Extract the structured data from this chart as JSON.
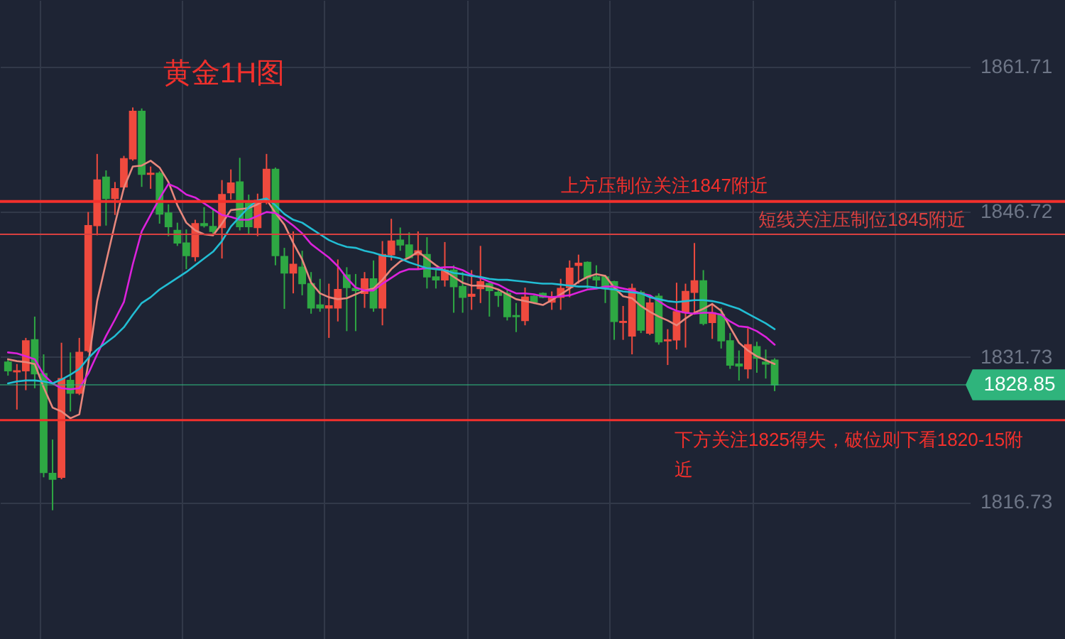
{
  "chart_data": {
    "type": "candlestick",
    "title": "黄金1H图",
    "categories": [
      null,
      null,
      null,
      null,
      null,
      null,
      null,
      null,
      null,
      null,
      null,
      null,
      null,
      null,
      null,
      null,
      null,
      null,
      null,
      null,
      null,
      null,
      null,
      null,
      null,
      null,
      null,
      null,
      null,
      null,
      null,
      null,
      null,
      null,
      null,
      null,
      null,
      null,
      null,
      null,
      null,
      null,
      null,
      null,
      null,
      null,
      null,
      null,
      null,
      null,
      null,
      null,
      null,
      null,
      null,
      null,
      null,
      null,
      null,
      null,
      null,
      null,
      null,
      null,
      null,
      null,
      null,
      null,
      null,
      null,
      null,
      null,
      null,
      null,
      null,
      null,
      null,
      null,
      null,
      null,
      null,
      null,
      null,
      null,
      null,
      null,
      null
    ],
    "ohlc": [
      [
        1831.2,
        1831.5,
        1829.8,
        1830.3
      ],
      [
        1830.2,
        1831.0,
        1826.3,
        1830.3
      ],
      [
        1830.3,
        1833.7,
        1828.3,
        1833.4
      ],
      [
        1833.5,
        1835.9,
        1828.5,
        1830.0
      ],
      [
        1830.0,
        1832.0,
        1819.3,
        1819.8
      ],
      [
        1819.7,
        1823.2,
        1815.9,
        1819.1
      ],
      [
        1819.3,
        1833.2,
        1819.1,
        1829.5
      ],
      [
        1829.3,
        1832.2,
        1826.1,
        1828.0
      ],
      [
        1828.0,
        1833.7,
        1827.8,
        1832.2
      ],
      [
        1832.4,
        1846.7,
        1832.2,
        1845.3
      ],
      [
        1845.3,
        1852.7,
        1844.3,
        1850.0
      ],
      [
        1850.3,
        1851.0,
        1845.3,
        1848.1
      ],
      [
        1848.1,
        1849.8,
        1846.4,
        1849.1
      ],
      [
        1849.3,
        1852.5,
        1849.0,
        1852.2
      ],
      [
        1852.2,
        1857.5,
        1852.0,
        1857.1
      ],
      [
        1857.1,
        1857.4,
        1849.3,
        1850.6
      ],
      [
        1850.6,
        1851.4,
        1849.1,
        1850.7
      ],
      [
        1850.7,
        1850.9,
        1845.5,
        1846.5
      ],
      [
        1846.6,
        1847.5,
        1844.2,
        1845.2
      ],
      [
        1844.8,
        1845.6,
        1843.2,
        1843.5
      ],
      [
        1843.5,
        1844.9,
        1840.8,
        1842.2
      ],
      [
        1842.1,
        1845.9,
        1841.6,
        1845.5
      ],
      [
        1845.5,
        1847.2,
        1845.1,
        1845.3
      ],
      [
        1845.2,
        1847.0,
        1844.3,
        1844.7
      ],
      [
        1845.1,
        1850.0,
        1841.9,
        1848.5
      ],
      [
        1848.7,
        1851.1,
        1848.0,
        1849.7
      ],
      [
        1849.8,
        1852.3,
        1844.8,
        1845.2
      ],
      [
        1847.6,
        1848.5,
        1844.4,
        1845.2
      ],
      [
        1845.1,
        1848.6,
        1844.2,
        1847.9
      ],
      [
        1847.9,
        1852.7,
        1847.5,
        1851.1
      ],
      [
        1851.1,
        1851.3,
        1841.2,
        1842.2
      ],
      [
        1842.1,
        1843.0,
        1836.7,
        1840.4
      ],
      [
        1840.4,
        1844.7,
        1838.3,
        1841.3
      ],
      [
        1841.0,
        1842.7,
        1838.1,
        1839.3
      ],
      [
        1839.3,
        1840.5,
        1836.2,
        1836.8
      ],
      [
        1837.1,
        1839.8,
        1836.4,
        1836.8
      ],
      [
        1836.8,
        1839.3,
        1833.7,
        1837.0
      ],
      [
        1836.8,
        1841.8,
        1835.4,
        1838.7
      ],
      [
        1840.2,
        1841.0,
        1834.4,
        1838.9
      ],
      [
        1838.8,
        1840.3,
        1834.4,
        1838.6
      ],
      [
        1838.3,
        1840.5,
        1836.8,
        1839.8
      ],
      [
        1839.8,
        1841.7,
        1836.4,
        1836.8
      ],
      [
        1836.8,
        1843.7,
        1835.0,
        1842.3
      ],
      [
        1842.3,
        1846.0,
        1841.7,
        1843.7
      ],
      [
        1843.8,
        1845.1,
        1842.7,
        1843.3
      ],
      [
        1843.3,
        1844.6,
        1841.9,
        1842.0
      ],
      [
        1842.3,
        1844.7,
        1840.8,
        1842.7
      ],
      [
        1842.3,
        1844.1,
        1838.8,
        1840.0
      ],
      [
        1840.0,
        1840.7,
        1838.8,
        1839.7
      ],
      [
        1839.7,
        1843.6,
        1839.0,
        1840.7
      ],
      [
        1840.7,
        1841.2,
        1836.3,
        1839.0
      ],
      [
        1839.0,
        1840.5,
        1836.3,
        1837.9
      ],
      [
        1838.0,
        1840.7,
        1836.6,
        1838.2
      ],
      [
        1838.8,
        1843.2,
        1837.3,
        1839.5
      ],
      [
        1839.3,
        1839.4,
        1835.9,
        1838.6
      ],
      [
        1838.4,
        1838.6,
        1836.9,
        1838.1
      ],
      [
        1838.3,
        1838.7,
        1835.5,
        1835.9
      ],
      [
        1836.0,
        1837.3,
        1834.3,
        1835.9
      ],
      [
        1835.5,
        1838.9,
        1835.0,
        1837.9
      ],
      [
        1838.0,
        1838.1,
        1837.2,
        1837.4
      ],
      [
        1838.3,
        1838.4,
        1837.8,
        1837.9
      ],
      [
        1837.4,
        1838.5,
        1836.6,
        1837.9
      ],
      [
        1837.9,
        1839.8,
        1836.6,
        1838.8
      ],
      [
        1838.9,
        1841.7,
        1837.9,
        1840.9
      ],
      [
        1841.2,
        1842.3,
        1839.3,
        1841.4
      ],
      [
        1841.5,
        1841.6,
        1838.8,
        1839.9
      ],
      [
        1840.0,
        1841.2,
        1839.0,
        1839.7
      ],
      [
        1840.0,
        1840.2,
        1837.3,
        1838.8
      ],
      [
        1839.5,
        1839.6,
        1833.5,
        1835.4
      ],
      [
        1835.3,
        1837.0,
        1833.5,
        1835.4
      ],
      [
        1833.9,
        1839.3,
        1832.0,
        1838.8
      ],
      [
        1838.4,
        1838.6,
        1834.2,
        1834.5
      ],
      [
        1834.2,
        1838.0,
        1834.0,
        1837.3
      ],
      [
        1838.0,
        1838.3,
        1833.0,
        1833.3
      ],
      [
        1833.4,
        1834.6,
        1830.9,
        1833.5
      ],
      [
        1833.5,
        1839.4,
        1832.5,
        1836.4
      ],
      [
        1836.3,
        1839.3,
        1832.7,
        1838.5
      ],
      [
        1838.4,
        1843.5,
        1836.1,
        1839.6
      ],
      [
        1839.6,
        1840.7,
        1835.0,
        1835.2
      ],
      [
        1835.3,
        1837.3,
        1833.6,
        1836.3
      ],
      [
        1836.1,
        1836.8,
        1832.6,
        1833.4
      ],
      [
        1833.4,
        1834.2,
        1830.5,
        1830.9
      ],
      [
        1831.0,
        1832.4,
        1829.3,
        1830.8
      ],
      [
        1830.5,
        1834.7,
        1829.5,
        1833.0
      ],
      [
        1832.8,
        1833.3,
        1830.1,
        1831.6
      ],
      [
        1831.2,
        1832.5,
        1829.5,
        1831.0
      ],
      [
        1831.4,
        1831.6,
        1828.2,
        1828.85
      ]
    ],
    "colors": [
      "#2ea843",
      "#ef4a3e",
      "#ef4a3e",
      "#2ea843",
      "#2ea843",
      "#2ea843",
      "#ef4a3e",
      "#2ea843",
      "#ef4a3e",
      "#ef4a3e",
      "#ef4a3e",
      "#2ea843",
      "#ef4a3e",
      "#ef4a3e",
      "#ef4a3e",
      "#2ea843",
      "#ef4a3e",
      "#2ea843",
      "#2ea843",
      "#2ea843",
      "#2ea843",
      "#ef4a3e",
      "#2ea843",
      "#2ea843",
      "#ef4a3e",
      "#ef4a3e",
      "#2ea843",
      "#2ea843",
      "#ef4a3e",
      "#ef4a3e",
      "#2ea843",
      "#2ea843",
      "#ef4a3e",
      "#2ea843",
      "#2ea843",
      "#2ea843",
      "#ef4a3e",
      "#ef4a3e",
      "#2ea843",
      "#2ea843",
      "#ef4a3e",
      "#2ea843",
      "#ef4a3e",
      "#ef4a3e",
      "#2ea843",
      "#2ea843",
      "#ef4a3e",
      "#2ea843",
      "#2ea843",
      "#ef4a3e",
      "#2ea843",
      "#2ea843",
      "#ef4a3e",
      "#ef4a3e",
      "#2ea843",
      "#2ea843",
      "#2ea843",
      "#2ea843",
      "#ef4a3e",
      "#2ea843",
      "#2ea843",
      "#ef4a3e",
      "#ef4a3e",
      "#ef4a3e",
      "#ef4a3e",
      "#2ea843",
      "#2ea843",
      "#2ea843",
      "#2ea843",
      "#ef4a3e",
      "#ef4a3e",
      "#2ea843",
      "#ef4a3e",
      "#2ea843",
      "#ef4a3e",
      "#ef4a3e",
      "#ef4a3e",
      "#ef4a3e",
      "#2ea843",
      "#ef4a3e",
      "#2ea843",
      "#2ea843",
      "#2ea843",
      "#ef4a3e",
      "#2ea843",
      "#2ea843",
      "#2ea843"
    ],
    "series": [
      {
        "type": "line",
        "color": "#e8877c",
        "values": [
          1831.5,
          1831.3,
          1831.2,
          1831.0,
          1828.6,
          1826.5,
          1826.1,
          1825.4,
          1825.8,
          1831.0,
          1837.5,
          1841.5,
          1845.5,
          1849.2,
          1851.4,
          1851.5,
          1852.0,
          1851.3,
          1849.8,
          1847.4,
          1845.6,
          1844.8,
          1844.4,
          1844.3,
          1845.5,
          1846.9,
          1847.0,
          1847.1,
          1847.5,
          1848.0,
          1846.6,
          1845.4,
          1843.5,
          1841.8,
          1839.4,
          1838.3,
          1837.9,
          1837.7,
          1837.8,
          1838.2,
          1838.6,
          1838.8,
          1839.7,
          1840.8,
          1841.6,
          1842.0,
          1842.6,
          1841.9,
          1841.2,
          1840.6,
          1840.0,
          1839.4,
          1839.1,
          1839.1,
          1839.0,
          1838.7,
          1838.2,
          1837.7,
          1837.5,
          1837.3,
          1837.1,
          1837.6,
          1838.2,
          1838.8,
          1839.5,
          1840.0,
          1840.3,
          1840.1,
          1838.9,
          1838.0,
          1837.8,
          1837.0,
          1836.4,
          1835.9,
          1835.5,
          1835.0,
          1835.7,
          1836.3,
          1836.7,
          1837.2,
          1836.5,
          1834.8,
          1833.2,
          1832.4,
          1831.8,
          1831.4,
          1831.0
        ]
      },
      {
        "type": "line",
        "color": "#dc22dc",
        "values": [
          1832.2,
          1832.1,
          1831.8,
          1831.5,
          1829.9,
          1829.0,
          1828.5,
          1828.4,
          1828.5,
          1830.0,
          1832.0,
          1833.9,
          1835.6,
          1837.4,
          1841.3,
          1844.7,
          1846.4,
          1848.1,
          1849.6,
          1849.2,
          1848.5,
          1848.2,
          1847.6,
          1847.0,
          1846.4,
          1846.2,
          1845.9,
          1845.9,
          1846.3,
          1846.7,
          1846.6,
          1846.0,
          1845.3,
          1844.5,
          1843.4,
          1842.7,
          1842.0,
          1841.1,
          1839.9,
          1838.9,
          1838.6,
          1838.6,
          1839.3,
          1839.9,
          1840.5,
          1840.8,
          1840.8,
          1840.9,
          1840.9,
          1841.0,
          1841.0,
          1840.7,
          1840.2,
          1839.9,
          1839.5,
          1839.2,
          1838.7,
          1838.3,
          1838.3,
          1838.2,
          1838.0,
          1837.9,
          1838.0,
          1838.1,
          1838.4,
          1838.7,
          1838.8,
          1839.0,
          1839.0,
          1838.8,
          1838.6,
          1838.3,
          1838.1,
          1837.5,
          1836.9,
          1836.5,
          1836.3,
          1836.2,
          1836.3,
          1836.3,
          1836.1,
          1835.4,
          1834.9,
          1834.8,
          1834.4,
          1833.8,
          1833.0
        ]
      },
      {
        "type": "line",
        "color": "#22bdd3",
        "values": [
          1829.0,
          1829.2,
          1829.3,
          1829.3,
          1829.2,
          1829.0,
          1829.4,
          1829.9,
          1830.5,
          1831.6,
          1832.5,
          1833.2,
          1833.9,
          1834.8,
          1836.1,
          1837.3,
          1837.9,
          1838.7,
          1839.3,
          1839.9,
          1840.5,
          1841.2,
          1841.9,
          1842.6,
          1843.7,
          1845.2,
          1846.2,
          1847.2,
          1847.9,
          1848.1,
          1847.4,
          1846.5,
          1845.9,
          1845.6,
          1845.0,
          1844.4,
          1843.8,
          1843.4,
          1843.1,
          1843.0,
          1842.7,
          1842.5,
          1842.2,
          1842.1,
          1841.9,
          1841.5,
          1841.2,
          1840.9,
          1840.8,
          1840.7,
          1840.4,
          1840.3,
          1840.1,
          1840.0,
          1839.8,
          1839.7,
          1839.7,
          1839.6,
          1839.5,
          1839.4,
          1839.3,
          1839.3,
          1839.2,
          1839.1,
          1839.0,
          1839.0,
          1838.9,
          1838.8,
          1838.7,
          1838.5,
          1838.4,
          1838.3,
          1837.9,
          1837.7,
          1837.5,
          1837.4,
          1837.5,
          1837.6,
          1837.6,
          1837.5,
          1837.3,
          1837.0,
          1836.7,
          1836.2,
          1835.7,
          1835.2,
          1834.6
        ]
      }
    ],
    "ylim": [
      1802.6,
      1868.6
    ],
    "yticks": [
      1816.73,
      1831.73,
      1846.72,
      1861.71
    ],
    "grid": true,
    "tick_labels": "y",
    "ref_lines": [
      {
        "axis": "y",
        "value": 1847.8,
        "label": "上方压制位关注1847附近",
        "color": "#f3302c"
      },
      {
        "axis": "y",
        "value": 1844.4,
        "label": "短线关注压制位1845附近",
        "color": "#d8403f"
      },
      {
        "axis": "y",
        "value": 1825.2,
        "label": "下方关注1825得失，破位则下看1820-15附近",
        "color": "#f3302c"
      },
      {
        "axis": "y",
        "value": 1828.85,
        "label": "1828.85",
        "color": "#2fb47c"
      }
    ]
  }
}
